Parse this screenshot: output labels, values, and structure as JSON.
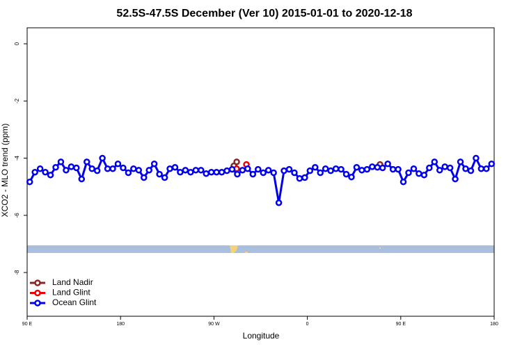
{
  "chart_data": {
    "type": "line",
    "title": "52.5S-47.5S December (Ver 10)   2015-01-01 to 2020-12-18",
    "x_label": "Longitude",
    "y_label": "XCO2 - MLO trend (ppm)",
    "xlim": [
      90,
      540
    ],
    "ylim": [
      -9.53,
      0.56
    ],
    "xticks": [
      {
        "value": 90,
        "label": "90 E"
      },
      {
        "value": 180,
        "label": "180"
      },
      {
        "value": 270,
        "label": "90 W"
      },
      {
        "value": 360,
        "label": "0"
      },
      {
        "value": 450,
        "label": "90 E"
      },
      {
        "value": 540,
        "label": "180"
      }
    ],
    "yticks": [
      0,
      -2,
      -4,
      -6,
      -8
    ],
    "legend": "bottom-left",
    "series": [
      {
        "name": "Land Nadir",
        "color": "#8b2525",
        "line": false,
        "x": [
          289.2,
          291.9,
          430.0
        ],
        "values": [
          -4.27,
          -4.13,
          -4.22
        ]
      },
      {
        "name": "Land Glint",
        "color": "#ee0000",
        "line": false,
        "x": [
          291.9,
          301.3
        ],
        "values": [
          -4.37,
          -4.22
        ]
      },
      {
        "name": "Ocean Glint",
        "color": "#0000ee",
        "line": true,
        "x": [
          92.5,
          97.5,
          102.5,
          107.5,
          112.5,
          117.5,
          122.5,
          127.5,
          132.5,
          137.5,
          142.5,
          147.5,
          152.5,
          157.5,
          162.5,
          167.5,
          172.5,
          177.5,
          182.5,
          187.5,
          192.5,
          197.5,
          202.5,
          207.5,
          212.5,
          217.5,
          222.5,
          227.5,
          232.5,
          237.5,
          242.5,
          247.5,
          252.5,
          257.5,
          262.5,
          267.5,
          272.5,
          277.5,
          282.5,
          287.5,
          292.5,
          297.5,
          302.5,
          307.5,
          312.5,
          317.5,
          322.5,
          327.5,
          332.5,
          337.5,
          342.5,
          347.5,
          352.5,
          357.5,
          362.5,
          367.5,
          372.5,
          377.5,
          382.5,
          387.5,
          392.5,
          397.5,
          402.5,
          407.5,
          412.5,
          417.5,
          422.5,
          427.5,
          432.5,
          437.5,
          442.5,
          447.5,
          452.5,
          457.5,
          462.5,
          467.5,
          472.5,
          477.5,
          482.5,
          487.5,
          492.5,
          497.5,
          502.5,
          507.5,
          512.5,
          517.5,
          522.5,
          527.5,
          532.5,
          537.5
        ],
        "values": [
          -4.83,
          -4.49,
          -4.37,
          -4.49,
          -4.59,
          -4.32,
          -4.13,
          -4.42,
          -4.3,
          -4.34,
          -4.73,
          -4.13,
          -4.37,
          -4.44,
          -4.0,
          -4.37,
          -4.37,
          -4.2,
          -4.34,
          -4.51,
          -4.37,
          -4.42,
          -4.68,
          -4.42,
          -4.2,
          -4.56,
          -4.68,
          -4.37,
          -4.32,
          -4.49,
          -4.42,
          -4.49,
          -4.42,
          -4.42,
          -4.54,
          -4.49,
          -4.49,
          -4.49,
          -4.44,
          -4.39,
          -4.56,
          -4.42,
          -4.37,
          -4.56,
          -4.39,
          -4.51,
          -4.42,
          -4.51,
          -5.56,
          -4.44,
          -4.39,
          -4.51,
          -4.71,
          -4.68,
          -4.44,
          -4.32,
          -4.51,
          -4.37,
          -4.44,
          -4.37,
          -4.39,
          -4.56,
          -4.66,
          -4.32,
          -4.42,
          -4.39,
          -4.3,
          -4.32,
          -4.34,
          -4.2,
          -4.39,
          -4.39,
          -4.83,
          -4.51,
          -4.37,
          -4.54,
          -4.59,
          -4.34,
          -4.13,
          -4.42,
          -4.3,
          -4.34,
          -4.73,
          -4.13,
          -4.37,
          -4.44,
          -4.0,
          -4.37,
          -4.37,
          -4.2
        ]
      }
    ]
  }
}
